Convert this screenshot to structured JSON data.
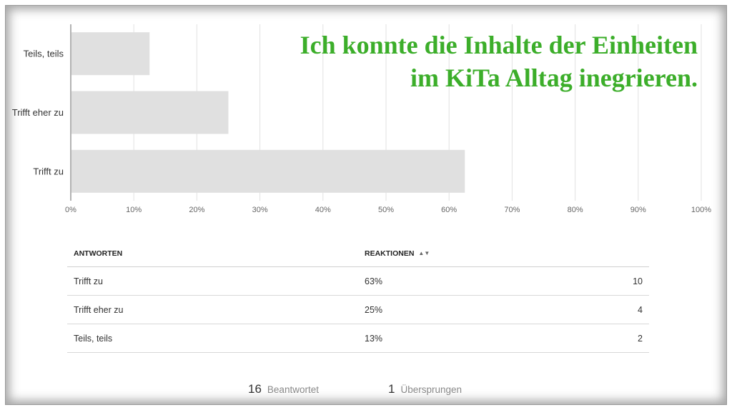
{
  "chart_data": {
    "type": "bar",
    "orientation": "horizontal",
    "title": "Ich konnte die Inhalte der Einheiten im KiTa Alltag inegrieren.",
    "title_lines": [
      "Ich konnte die Inhalte der Einheiten",
      "im KiTa Alltag inegrieren."
    ],
    "categories": [
      "Teils, teils",
      "Trifft eher zu",
      "Trifft zu"
    ],
    "values": [
      12.5,
      25,
      62.5
    ],
    "xlim": [
      0,
      100
    ],
    "x_ticks": [
      "0%",
      "10%",
      "20%",
      "30%",
      "40%",
      "50%",
      "60%",
      "70%",
      "80%",
      "90%",
      "100%"
    ],
    "grid": true,
    "bar_color": "#e0e0e0",
    "title_color": "#3cae2a"
  },
  "table": {
    "headers": {
      "answers": "ANTWORTEN",
      "reactions": "REAKTIONEN"
    },
    "rows": [
      {
        "answer": "Trifft zu",
        "percent": "63%",
        "count": "10"
      },
      {
        "answer": "Trifft eher zu",
        "percent": "25%",
        "count": "4"
      },
      {
        "answer": "Teils, teils",
        "percent": "13%",
        "count": "2"
      }
    ]
  },
  "summary": {
    "answered_count": "16",
    "answered_label": "Beantwortet",
    "skipped_count": "1",
    "skipped_label": "Übersprungen"
  }
}
